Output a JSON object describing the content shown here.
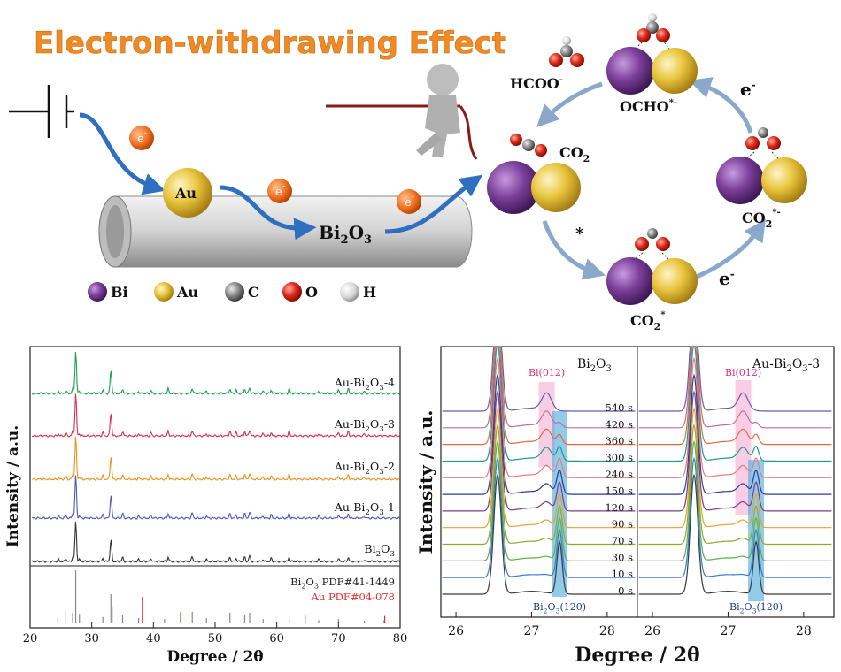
{
  "schematic": {
    "title": "Electron-withdrawing Effect",
    "electron_label": "e",
    "electron_charge": "-",
    "au_label": "Au",
    "bi2o3_label": {
      "main": "Bi",
      "sub1": "2",
      "mid": "O",
      "sub2": "3"
    },
    "legend": [
      {
        "label": "Bi",
        "color": "#7b3f9a"
      },
      {
        "label": "Au",
        "color": "#e8c43c"
      },
      {
        "label": "C",
        "color": "#8c8c8c"
      },
      {
        "label": "O",
        "color": "#e02a1a"
      },
      {
        "label": "H",
        "color": "#d8d8d8"
      }
    ],
    "cycle": {
      "hcoo": "HCOO",
      "hcoo_charge": "-",
      "ocho": "OCHO",
      "ocho_charge": "*-",
      "co2": {
        "main": "CO",
        "sub": "2"
      },
      "co2_star": {
        "main": "CO",
        "sub": "2",
        "sup": "*"
      },
      "co2_radical": {
        "main": "CO",
        "sub": "2",
        "sup": "*-"
      },
      "star": "*",
      "e_top": "e",
      "e_bottom": "e",
      "e_charge": "-"
    }
  },
  "chart_data": [
    {
      "type": "line",
      "title": "",
      "xlabel": "Degree / 2θ",
      "ylabel": "Intensity / a.u.",
      "xlim": [
        20,
        80
      ],
      "xticks": [
        "20",
        "30",
        "40",
        "50",
        "60",
        "70",
        "80"
      ],
      "series": [
        {
          "name": "Au-Bi2O3-4",
          "label": {
            "main": "Au-Bi",
            "sub1": "2",
            "mid": "O",
            "sub2": "3",
            "tail": "-4"
          },
          "color": "#1aa34a"
        },
        {
          "name": "Au-Bi2O3-3",
          "label": {
            "main": "Au-Bi",
            "sub1": "2",
            "mid": "O",
            "sub2": "3",
            "tail": "-3"
          },
          "color": "#d8304a"
        },
        {
          "name": "Au-Bi2O3-2",
          "label": {
            "main": "Au-Bi",
            "sub1": "2",
            "mid": "O",
            "sub2": "3",
            "tail": "-2"
          },
          "color": "#f0901a"
        },
        {
          "name": "Au-Bi2O3-1",
          "label": {
            "main": "Au-Bi",
            "sub1": "2",
            "mid": "O",
            "sub2": "3",
            "tail": "-1"
          },
          "color": "#4a58b8"
        },
        {
          "name": "Bi2O3",
          "label": {
            "main": "Bi",
            "sub1": "2",
            "mid": "O",
            "sub2": "3",
            "tail": ""
          },
          "color": "#333333"
        }
      ],
      "main_peaks_2theta": [
        27.4,
        33.1,
        46.3,
        52.4,
        55.6
      ],
      "reference": [
        {
          "name": "Bi2O3 PDF#41-1449",
          "label": {
            "main": "Bi",
            "sub1": "2",
            "mid": "O",
            "sub2": "3",
            "tail": " PDF#41-1449"
          },
          "color": "#222222",
          "lines": [
            [
              24.5,
              0.1
            ],
            [
              25.8,
              0.25
            ],
            [
              26.9,
              0.2
            ],
            [
              27.4,
              1.0
            ],
            [
              28.0,
              0.18
            ],
            [
              31.8,
              0.12
            ],
            [
              33.1,
              0.55
            ],
            [
              33.3,
              0.3
            ],
            [
              35.0,
              0.15
            ],
            [
              37.6,
              0.1
            ],
            [
              41.8,
              0.08
            ],
            [
              46.3,
              0.22
            ],
            [
              48.6,
              0.1
            ],
            [
              52.4,
              0.2
            ],
            [
              54.8,
              0.15
            ],
            [
              55.6,
              0.2
            ],
            [
              57.8,
              0.08
            ],
            [
              62.0,
              0.08
            ],
            [
              66.8,
              0.06
            ],
            [
              70.0,
              0.08
            ],
            [
              74.2,
              0.05
            ],
            [
              77.4,
              0.06
            ]
          ]
        },
        {
          "name": "Au PDF#04-078",
          "label": {
            "main": "Au PDF#04-078",
            "sub1": "",
            "mid": "",
            "sub2": "",
            "tail": ""
          },
          "color": "#e53030",
          "lines": [
            [
              38.2,
              0.5
            ],
            [
              44.4,
              0.22
            ],
            [
              64.6,
              0.15
            ],
            [
              77.5,
              0.14
            ]
          ]
        }
      ]
    },
    {
      "type": "line",
      "title": "",
      "xlabel": "Degree / 2θ",
      "ylabel": "Intensity / a.u.",
      "panels": [
        {
          "name": "Bi2O3",
          "label": {
            "main": "Bi",
            "sub1": "2",
            "mid": "O",
            "sub2": "3",
            "tail": ""
          },
          "xlim": [
            25.8,
            28.4
          ],
          "xticks": [
            "26",
            "27",
            "28"
          ]
        },
        {
          "name": "Au-Bi2O3-3",
          "label": {
            "main": "Au-Bi",
            "sub1": "2",
            "mid": "O",
            "sub2": "3",
            "tail": "-3"
          },
          "xlim": [
            25.8,
            28.4
          ],
          "xticks": [
            "26",
            "27",
            "28"
          ]
        }
      ],
      "time_labels": [
        "540 s",
        "420 s",
        "360 s",
        "300 s",
        "240 s",
        "150 s",
        "120 s",
        "90 s",
        "70 s",
        "30 s",
        "10 s",
        "0 s"
      ],
      "series_colors": [
        "#6a5aa8",
        "#c06f9a",
        "#e06a40",
        "#1a9a8a",
        "#e87a7a",
        "#2a3a9a",
        "#7a3a8a",
        "#e8a030",
        "#8aaa30",
        "#5ab04a",
        "#3a7ad0",
        "#3a3a3a"
      ],
      "peaks": {
        "main": 26.55,
        "bi_012": 27.2,
        "bi2o3_120": 27.37
      },
      "annotations": {
        "bi012": "Bi(012)",
        "bi2o3_120": {
          "main": "Bi",
          "sub1": "2",
          "mid": "O",
          "sub2": "3",
          "tail": "(120)"
        }
      }
    }
  ]
}
